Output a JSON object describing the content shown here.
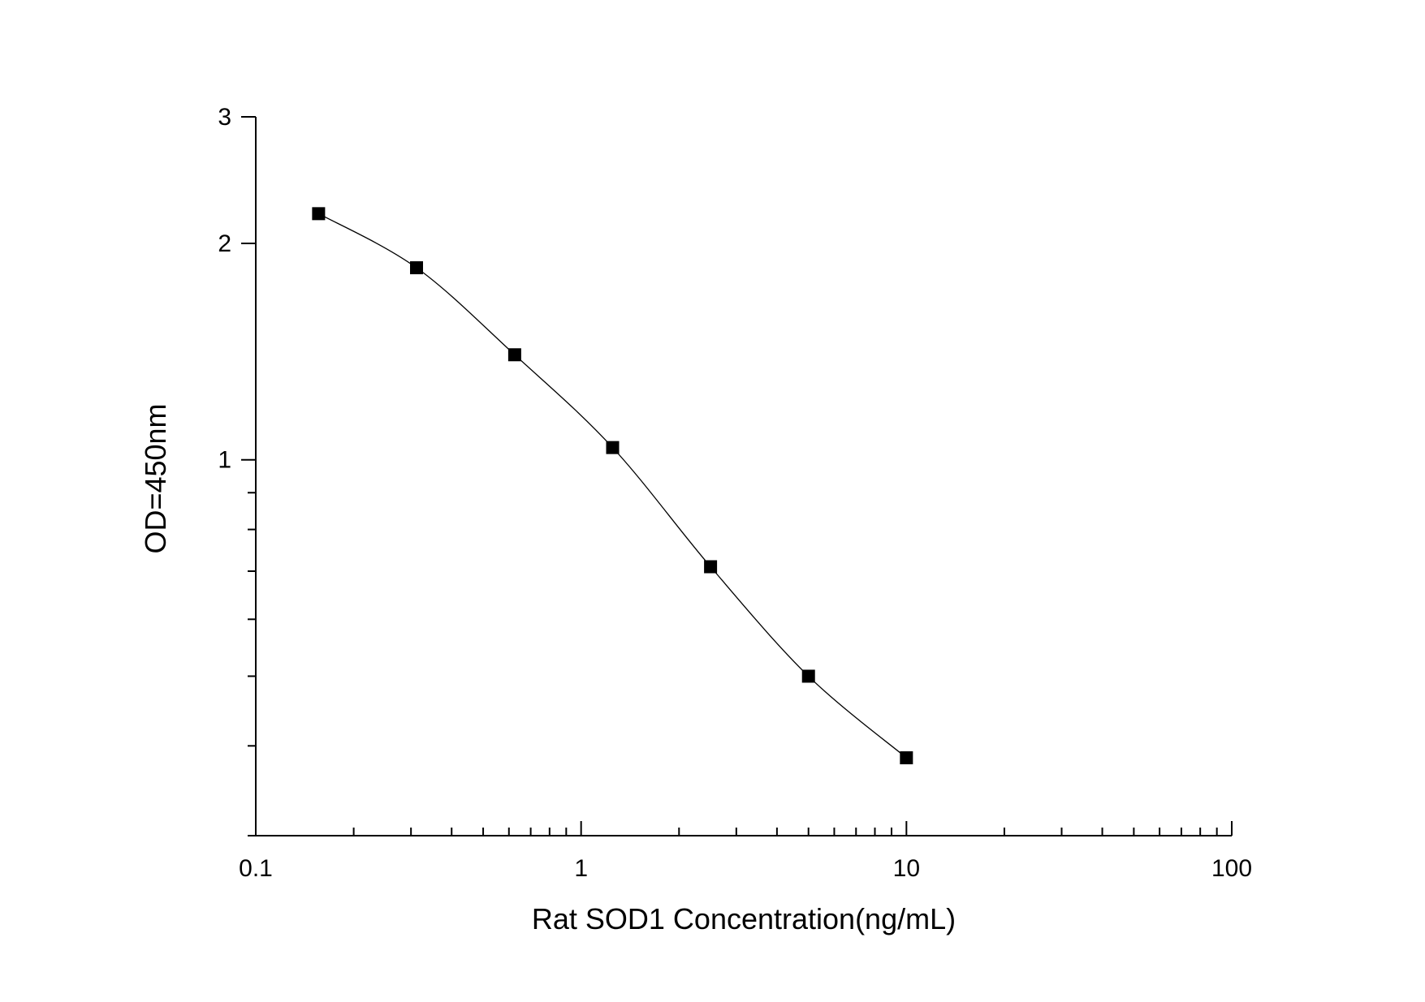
{
  "chart_data": {
    "type": "line",
    "title": "",
    "xlabel": "Rat SOD1 Concentration(ng/mL)",
    "ylabel": "OD=450nm",
    "x_scale": "log",
    "y_scale": "log",
    "xlim": [
      0.1,
      100
    ],
    "ylim": [
      0.3,
      3
    ],
    "x_ticks": [
      {
        "value": 0.1,
        "label": "0.1"
      },
      {
        "value": 1,
        "label": "1"
      },
      {
        "value": 10,
        "label": "10"
      },
      {
        "value": 100,
        "label": "100"
      }
    ],
    "y_ticks": [
      {
        "value": 1,
        "label": "1"
      },
      {
        "value": 2,
        "label": "2"
      },
      {
        "value": 3,
        "label": "3"
      }
    ],
    "grid": false,
    "legend": "none",
    "marker": "square",
    "colors": {
      "series": "#000000",
      "axis": "#000000"
    },
    "series": [
      {
        "x": [
          0.156,
          0.312,
          0.625,
          1.25,
          2.5,
          5,
          10
        ],
        "y": [
          2.2,
          1.85,
          1.4,
          1.04,
          0.71,
          0.5,
          0.385
        ]
      }
    ]
  }
}
